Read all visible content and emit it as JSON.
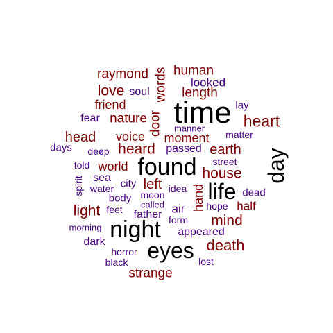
{
  "colors": {
    "black": "#000000",
    "red": "#7a0000",
    "purple": "#46007a"
  },
  "words": [
    {
      "text": "time",
      "color": "black"
    },
    {
      "text": "found",
      "color": "black"
    },
    {
      "text": "night",
      "color": "black"
    },
    {
      "text": "eyes",
      "color": "black"
    },
    {
      "text": "life",
      "color": "black"
    },
    {
      "text": "day",
      "color": "black"
    },
    {
      "text": "raymond",
      "color": "red"
    },
    {
      "text": "human",
      "color": "red"
    },
    {
      "text": "words",
      "color": "red"
    },
    {
      "text": "love",
      "color": "red"
    },
    {
      "text": "soul",
      "color": "purple"
    },
    {
      "text": "looked",
      "color": "purple"
    },
    {
      "text": "length",
      "color": "red"
    },
    {
      "text": "friend",
      "color": "red"
    },
    {
      "text": "lay",
      "color": "purple"
    },
    {
      "text": "fear",
      "color": "purple"
    },
    {
      "text": "nature",
      "color": "red"
    },
    {
      "text": "door",
      "color": "red"
    },
    {
      "text": "heart",
      "color": "red"
    },
    {
      "text": "manner",
      "color": "purple"
    },
    {
      "text": "head",
      "color": "red"
    },
    {
      "text": "voice",
      "color": "red"
    },
    {
      "text": "moment",
      "color": "red"
    },
    {
      "text": "matter",
      "color": "purple"
    },
    {
      "text": "days",
      "color": "purple"
    },
    {
      "text": "deep",
      "color": "purple"
    },
    {
      "text": "heard",
      "color": "red"
    },
    {
      "text": "passed",
      "color": "purple"
    },
    {
      "text": "earth",
      "color": "red"
    },
    {
      "text": "street",
      "color": "purple"
    },
    {
      "text": "told",
      "color": "purple"
    },
    {
      "text": "world",
      "color": "red"
    },
    {
      "text": "house",
      "color": "red"
    },
    {
      "text": "spirit",
      "color": "purple"
    },
    {
      "text": "sea",
      "color": "purple"
    },
    {
      "text": "city",
      "color": "purple"
    },
    {
      "text": "left",
      "color": "red"
    },
    {
      "text": "idea",
      "color": "purple"
    },
    {
      "text": "hand",
      "color": "red"
    },
    {
      "text": "water",
      "color": "purple"
    },
    {
      "text": "moon",
      "color": "purple"
    },
    {
      "text": "dead",
      "color": "purple"
    },
    {
      "text": "body",
      "color": "purple"
    },
    {
      "text": "light",
      "color": "red"
    },
    {
      "text": "called",
      "color": "purple"
    },
    {
      "text": "feet",
      "color": "purple"
    },
    {
      "text": "air",
      "color": "purple"
    },
    {
      "text": "hope",
      "color": "purple"
    },
    {
      "text": "half",
      "color": "red"
    },
    {
      "text": "father",
      "color": "purple"
    },
    {
      "text": "form",
      "color": "purple"
    },
    {
      "text": "mind",
      "color": "red"
    },
    {
      "text": "morning",
      "color": "purple"
    },
    {
      "text": "appeared",
      "color": "purple"
    },
    {
      "text": "dark",
      "color": "purple"
    },
    {
      "text": "death",
      "color": "red"
    },
    {
      "text": "horror",
      "color": "purple"
    },
    {
      "text": "black",
      "color": "purple"
    },
    {
      "text": "lost",
      "color": "purple"
    },
    {
      "text": "strange",
      "color": "red"
    }
  ]
}
